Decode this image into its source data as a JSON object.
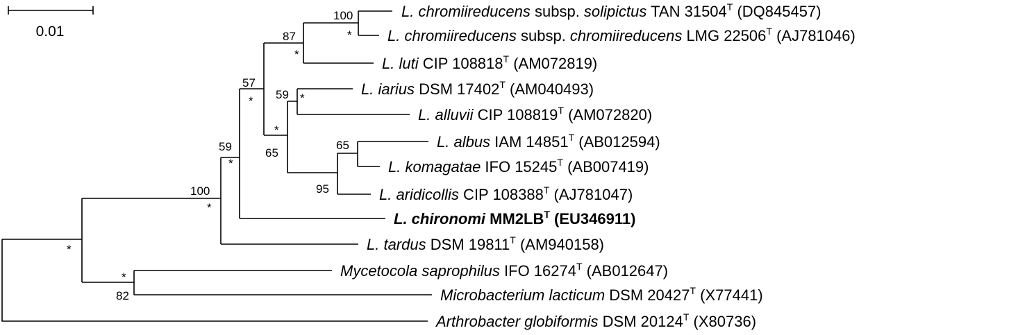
{
  "scale_bar": {
    "label": "0.01"
  },
  "taxa": [
    {
      "id": "solipictus",
      "parts": [
        {
          "t": "L. chromiireducens",
          "i": true
        },
        {
          "t": " subsp. "
        },
        {
          "t": "solipictus",
          "i": true
        },
        {
          "t": " TAN 31504"
        },
        {
          "t": "T",
          "sup": true
        },
        {
          "t": " (DQ845457)"
        }
      ]
    },
    {
      "id": "chromiireducens",
      "parts": [
        {
          "t": "L. chromiireducens",
          "i": true
        },
        {
          "t": " subsp. "
        },
        {
          "t": "chromiireducens",
          "i": true
        },
        {
          "t": " LMG 22506"
        },
        {
          "t": "T",
          "sup": true
        },
        {
          "t": " (AJ781046)"
        }
      ]
    },
    {
      "id": "luti",
      "parts": [
        {
          "t": "L. luti",
          "i": true
        },
        {
          "t": " CIP 108818"
        },
        {
          "t": "T",
          "sup": true
        },
        {
          "t": " (AM072819)"
        }
      ]
    },
    {
      "id": "iarius",
      "parts": [
        {
          "t": "L. iarius",
          "i": true
        },
        {
          "t": " DSM 17402"
        },
        {
          "t": "T",
          "sup": true
        },
        {
          "t": " (AM040493)"
        }
      ]
    },
    {
      "id": "alluvii",
      "parts": [
        {
          "t": "L. alluvii",
          "i": true
        },
        {
          "t": " CIP 108819"
        },
        {
          "t": "T",
          "sup": true
        },
        {
          "t": " (AM072820)"
        }
      ]
    },
    {
      "id": "albus",
      "parts": [
        {
          "t": "L. albus",
          "i": true
        },
        {
          "t": " IAM 14851"
        },
        {
          "t": "T",
          "sup": true
        },
        {
          "t": " (AB012594)"
        }
      ]
    },
    {
      "id": "komagatae",
      "parts": [
        {
          "t": "L. komagatae",
          "i": true
        },
        {
          "t": " IFO 15245"
        },
        {
          "t": "T",
          "sup": true
        },
        {
          "t": " (AB007419)"
        }
      ]
    },
    {
      "id": "aridicollis",
      "parts": [
        {
          "t": "L. aridicollis",
          "i": true
        },
        {
          "t": " CIP 108388"
        },
        {
          "t": "T",
          "sup": true
        },
        {
          "t": " (AJ781047)"
        }
      ]
    },
    {
      "id": "chironomi",
      "bold": true,
      "parts": [
        {
          "t": "L. chironomi",
          "i": true
        },
        {
          "t": " MM2LB"
        },
        {
          "t": "T",
          "sup": true
        },
        {
          "t": " (EU346911)"
        }
      ]
    },
    {
      "id": "tardus",
      "parts": [
        {
          "t": "L. tardus",
          "i": true
        },
        {
          "t": " DSM 19811"
        },
        {
          "t": "T",
          "sup": true
        },
        {
          "t": " (AM940158)"
        }
      ]
    },
    {
      "id": "mycetocola",
      "parts": [
        {
          "t": "Mycetocola saprophilus",
          "i": true
        },
        {
          "t": " IFO 16274"
        },
        {
          "t": "T",
          "sup": true
        },
        {
          "t": " (AB012647)"
        }
      ]
    },
    {
      "id": "microbacterium",
      "parts": [
        {
          "t": "Microbacterium lacticum",
          "i": true
        },
        {
          "t": " DSM 20427"
        },
        {
          "t": "T",
          "sup": true
        },
        {
          "t": " (X77441)"
        }
      ]
    },
    {
      "id": "arthrobacter",
      "parts": [
        {
          "t": "Arthrobacter globiformis",
          "i": true
        },
        {
          "t": " DSM 20124"
        },
        {
          "t": "T",
          "sup": true
        },
        {
          "t": " (X80736)"
        }
      ]
    }
  ],
  "supports": [
    {
      "id": "chromii-pair",
      "values": [
        "100",
        "*"
      ]
    },
    {
      "id": "chromii-luti",
      "values": [
        "87",
        "*"
      ]
    },
    {
      "id": "iarius-alluvii",
      "values": [
        "59",
        "*"
      ]
    },
    {
      "id": "albus-komagatae",
      "values": [
        "65"
      ]
    },
    {
      "id": "albus-aridicollis",
      "values": [
        "95"
      ]
    },
    {
      "id": "iarius-albus",
      "values": [
        "*",
        "65"
      ]
    },
    {
      "id": "chromii-iarius",
      "values": [
        "57",
        "*"
      ]
    },
    {
      "id": "lyso-chironomi",
      "values": [
        "59",
        "*"
      ]
    },
    {
      "id": "lyso-tardus",
      "values": [
        "100",
        "*"
      ]
    },
    {
      "id": "mycetocola-microbacterium",
      "values": [
        "*",
        "82"
      ]
    },
    {
      "id": "ingroup",
      "values": [
        "*"
      ]
    }
  ]
}
